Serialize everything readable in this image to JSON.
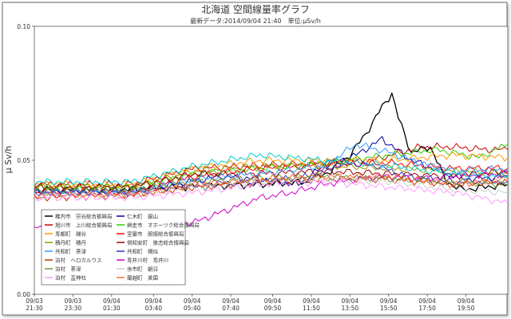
{
  "chart_data": {
    "type": "line",
    "title": "北海道 空間線量率グラフ",
    "subtitle": "最新データ:2014/09/04 21:40　単位:μSv/h",
    "ylabel": "μ Sv/h",
    "xlabel": "",
    "ylim": [
      0,
      0.1
    ],
    "xlim": [
      0,
      1470
    ],
    "y_ticks": [
      {
        "v": 0,
        "label": "0.00"
      },
      {
        "v": 0.05,
        "label": "0.05"
      },
      {
        "v": 0.1,
        "label": "0.10"
      }
    ],
    "x_ticks": [
      {
        "t": 0,
        "date": "09/03",
        "time": "21:30"
      },
      {
        "t": 120,
        "date": "09/03",
        "time": "23:30"
      },
      {
        "t": 240,
        "date": "09/04",
        "time": "01:30"
      },
      {
        "t": 370,
        "date": "09/04",
        "time": "03:40"
      },
      {
        "t": 490,
        "date": "09/04",
        "time": "05:40"
      },
      {
        "t": 610,
        "date": "09/04",
        "time": "07:40"
      },
      {
        "t": 740,
        "date": "09/04",
        "time": "09:50"
      },
      {
        "t": 860,
        "date": "09/04",
        "time": "11:50"
      },
      {
        "t": 980,
        "date": "09/04",
        "time": "13:50"
      },
      {
        "t": 1100,
        "date": "09/04",
        "time": "15:50"
      },
      {
        "t": 1220,
        "date": "09/04",
        "time": "17:50"
      },
      {
        "t": 1340,
        "date": "09/04",
        "time": "19:50"
      }
    ],
    "grid": false,
    "legend_position": "bottom-left",
    "series": [
      {
        "name": "稚内市　宗谷総合振興局",
        "color": "#000000",
        "points": [
          [
            0,
            0.039
          ],
          [
            240,
            0.039
          ],
          [
            480,
            0.04
          ],
          [
            700,
            0.041
          ],
          [
            850,
            0.042
          ],
          [
            920,
            0.046
          ],
          [
            980,
            0.052
          ],
          [
            1030,
            0.06
          ],
          [
            1080,
            0.07
          ],
          [
            1110,
            0.075
          ],
          [
            1130,
            0.066
          ],
          [
            1170,
            0.053
          ],
          [
            1230,
            0.055
          ],
          [
            1280,
            0.042
          ],
          [
            1330,
            0.039
          ],
          [
            1400,
            0.04
          ],
          [
            1470,
            0.041
          ]
        ]
      },
      {
        "name": "仁木町　銀山",
        "color": "#000099",
        "points": [
          [
            0,
            0.038
          ],
          [
            300,
            0.038
          ],
          [
            480,
            0.042
          ],
          [
            580,
            0.044
          ],
          [
            700,
            0.043
          ],
          [
            820,
            0.041
          ],
          [
            900,
            0.048
          ],
          [
            1000,
            0.052
          ],
          [
            1080,
            0.058
          ],
          [
            1170,
            0.05
          ],
          [
            1260,
            0.046
          ],
          [
            1340,
            0.043
          ],
          [
            1470,
            0.044
          ]
        ]
      },
      {
        "name": "旭川市　上川総合振興局",
        "color": "#cc0000",
        "points": [
          [
            0,
            0.041
          ],
          [
            300,
            0.041
          ],
          [
            500,
            0.047
          ],
          [
            700,
            0.048
          ],
          [
            900,
            0.049
          ],
          [
            1050,
            0.05
          ],
          [
            1200,
            0.055
          ],
          [
            1300,
            0.055
          ],
          [
            1400,
            0.054
          ],
          [
            1470,
            0.054
          ]
        ]
      },
      {
        "name": "網走市　オホーツク総合振興局",
        "color": "#33cc00",
        "points": [
          [
            0,
            0.04
          ],
          [
            300,
            0.04
          ],
          [
            500,
            0.045
          ],
          [
            700,
            0.047
          ],
          [
            900,
            0.049
          ],
          [
            1100,
            0.052
          ],
          [
            1250,
            0.054
          ],
          [
            1380,
            0.051
          ],
          [
            1470,
            0.056
          ]
        ]
      },
      {
        "name": "寿都町　磯谷",
        "color": "#ff9900",
        "points": [
          [
            0,
            0.041
          ],
          [
            300,
            0.041
          ],
          [
            500,
            0.047
          ],
          [
            700,
            0.05
          ],
          [
            900,
            0.05
          ],
          [
            1100,
            0.05
          ],
          [
            1300,
            0.052
          ],
          [
            1470,
            0.051
          ]
        ]
      },
      {
        "name": "室蘭市　胆振総合振興局",
        "color": "#ff0000",
        "points": [
          [
            0,
            0.038
          ],
          [
            300,
            0.038
          ],
          [
            500,
            0.044
          ],
          [
            700,
            0.047
          ],
          [
            900,
            0.048
          ],
          [
            1100,
            0.049
          ],
          [
            1300,
            0.047
          ],
          [
            1470,
            0.047
          ]
        ]
      },
      {
        "name": "積丹町　積丹",
        "color": "#999900",
        "points": [
          [
            0,
            0.04
          ],
          [
            300,
            0.04
          ],
          [
            500,
            0.046
          ],
          [
            700,
            0.048
          ],
          [
            900,
            0.048
          ],
          [
            1100,
            0.047
          ],
          [
            1300,
            0.046
          ],
          [
            1470,
            0.045
          ]
        ]
      },
      {
        "name": "倶知安町　後志総合振興局",
        "color": "#990000",
        "points": [
          [
            0,
            0.04
          ],
          [
            300,
            0.04
          ],
          [
            500,
            0.045
          ],
          [
            700,
            0.045
          ],
          [
            900,
            0.046
          ],
          [
            1100,
            0.045
          ],
          [
            1300,
            0.044
          ],
          [
            1470,
            0.046
          ]
        ]
      },
      {
        "name": "共和町　茶津",
        "color": "#3399ff",
        "points": [
          [
            0,
            0.038
          ],
          [
            300,
            0.038
          ],
          [
            500,
            0.043
          ],
          [
            700,
            0.045
          ],
          [
            900,
            0.048
          ],
          [
            1000,
            0.056
          ],
          [
            1100,
            0.053
          ],
          [
            1200,
            0.049
          ],
          [
            1300,
            0.046
          ],
          [
            1470,
            0.047
          ]
        ]
      },
      {
        "name": "共和町　幌似",
        "color": "#3333cc",
        "points": [
          [
            0,
            0.038
          ],
          [
            300,
            0.038
          ],
          [
            500,
            0.041
          ],
          [
            700,
            0.042
          ],
          [
            860,
            0.044
          ],
          [
            960,
            0.049
          ],
          [
            1060,
            0.048
          ],
          [
            1160,
            0.044
          ],
          [
            1300,
            0.042
          ],
          [
            1470,
            0.042
          ]
        ]
      },
      {
        "name": "泊村　ヘロカルウス",
        "color": "#cc3300",
        "points": [
          [
            0,
            0.036
          ],
          [
            300,
            0.037
          ],
          [
            500,
            0.04
          ],
          [
            700,
            0.042
          ],
          [
            900,
            0.043
          ],
          [
            1100,
            0.043
          ],
          [
            1300,
            0.041
          ],
          [
            1470,
            0.042
          ]
        ]
      },
      {
        "name": "寿井川村　寿井川",
        "color": "#cc00cc",
        "points": [
          [
            0,
            0.025
          ],
          [
            300,
            0.025
          ],
          [
            500,
            0.027
          ],
          [
            700,
            0.036
          ],
          [
            800,
            0.038
          ],
          [
            900,
            0.041
          ],
          [
            1000,
            0.043
          ],
          [
            1100,
            0.044
          ],
          [
            1200,
            0.043
          ],
          [
            1300,
            0.044
          ],
          [
            1470,
            0.045
          ]
        ]
      },
      {
        "name": "泊村　茶津",
        "color": "#669933",
        "points": [
          [
            0,
            0.039
          ],
          [
            300,
            0.039
          ],
          [
            500,
            0.042
          ],
          [
            700,
            0.043
          ],
          [
            900,
            0.044
          ],
          [
            1100,
            0.043
          ],
          [
            1300,
            0.042
          ],
          [
            1470,
            0.041
          ]
        ]
      },
      {
        "name": "余市町　朝日",
        "color": "#cccccc",
        "points": [
          [
            0,
            0.037
          ],
          [
            300,
            0.037
          ],
          [
            500,
            0.04
          ],
          [
            700,
            0.042
          ],
          [
            900,
            0.043
          ],
          [
            1100,
            0.042
          ],
          [
            1300,
            0.039
          ],
          [
            1470,
            0.038
          ]
        ]
      },
      {
        "name": "泊村　盃神社",
        "color": "#ff99ff",
        "points": [
          [
            0,
            0.036
          ],
          [
            300,
            0.036
          ],
          [
            500,
            0.038
          ],
          [
            700,
            0.041
          ],
          [
            900,
            0.042
          ],
          [
            1100,
            0.04
          ],
          [
            1300,
            0.038
          ],
          [
            1470,
            0.034
          ]
        ]
      },
      {
        "name": "蘭越町　美国",
        "color": "#ff6633",
        "points": [
          [
            0,
            0.037
          ],
          [
            300,
            0.037
          ],
          [
            500,
            0.041
          ],
          [
            700,
            0.043
          ],
          [
            900,
            0.044
          ],
          [
            1100,
            0.044
          ],
          [
            1300,
            0.041
          ],
          [
            1470,
            0.043
          ]
        ]
      },
      {
        "name": "",
        "color": "#00cccc",
        "points": [
          [
            0,
            0.042
          ],
          [
            300,
            0.042
          ],
          [
            500,
            0.048
          ],
          [
            700,
            0.052
          ],
          [
            900,
            0.05
          ],
          [
            1100,
            0.048
          ],
          [
            1300,
            0.045
          ],
          [
            1470,
            0.044
          ]
        ]
      }
    ]
  }
}
